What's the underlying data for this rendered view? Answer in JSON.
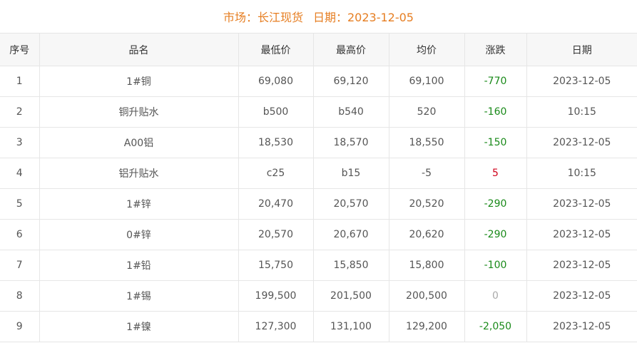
{
  "header": {
    "market": "市场：长江现货",
    "date": "日期：2023-12-05"
  },
  "table": {
    "columns": [
      "序号",
      "品名",
      "最低价",
      "最高价",
      "均价",
      "涨跌",
      "日期"
    ],
    "rows": [
      [
        "1",
        "1#铜",
        "69,080",
        "69,120",
        "69,100",
        "-770",
        "2023-12-05"
      ],
      [
        "2",
        "铜升贴水",
        "b500",
        "b540",
        "520",
        "-160",
        "10:15"
      ],
      [
        "3",
        "A00铝",
        "18,530",
        "18,570",
        "18,550",
        "-150",
        "2023-12-05"
      ],
      [
        "4",
        "铝升贴水",
        "c25",
        "b15",
        "-5",
        "5",
        "10:15"
      ],
      [
        "5",
        "1#锌",
        "20,470",
        "20,570",
        "20,520",
        "-290",
        "2023-12-05"
      ],
      [
        "6",
        "0#锌",
        "20,570",
        "20,670",
        "20,620",
        "-290",
        "2023-12-05"
      ],
      [
        "7",
        "1#铅",
        "15,750",
        "15,850",
        "15,800",
        "-100",
        "2023-12-05"
      ],
      [
        "8",
        "1#锡",
        "199,500",
        "201,500",
        "200,500",
        "0",
        "2023-12-05"
      ],
      [
        "9",
        "1#镍",
        "127,300",
        "131,100",
        "129,200",
        "-2,050",
        "2023-12-05"
      ]
    ]
  }
}
